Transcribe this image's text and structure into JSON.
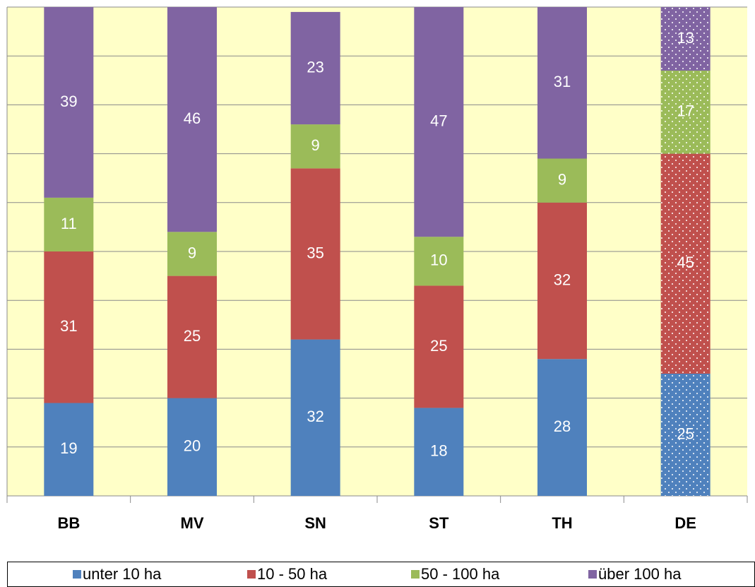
{
  "chart_data": {
    "type": "stacked_bar",
    "categories": [
      "BB",
      "MV",
      "SN",
      "ST",
      "TH",
      "DE"
    ],
    "series": [
      {
        "name": "unter 10 ha",
        "color": "#4f81bd",
        "values": [
          19,
          20,
          32,
          18,
          28,
          25
        ]
      },
      {
        "name": "10 - 50 ha",
        "color": "#c0504d",
        "values": [
          31,
          25,
          35,
          25,
          32,
          45
        ]
      },
      {
        "name": "50 - 100 ha",
        "color": "#9bbb59",
        "values": [
          11,
          9,
          9,
          10,
          9,
          17
        ]
      },
      {
        "name": "über 100 ha",
        "color": "#8064a2",
        "values": [
          39,
          46,
          23,
          47,
          31,
          13
        ]
      }
    ],
    "dotted": [
      false,
      false,
      false,
      false,
      false,
      true
    ],
    "ylim": [
      0,
      100
    ],
    "yticks": [
      0,
      10,
      20,
      30,
      40,
      50,
      60,
      70,
      80,
      90,
      100
    ],
    "grid": true,
    "legend": "bottom"
  }
}
